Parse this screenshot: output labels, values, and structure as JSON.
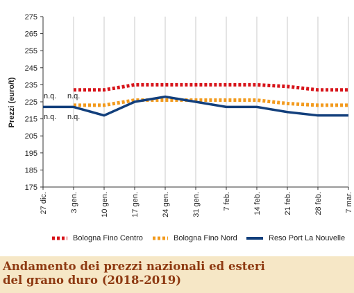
{
  "chart_data": {
    "type": "line",
    "ylabel": "Prezzi (euro/t)",
    "ylim": [
      175,
      275
    ],
    "yticks": [
      175,
      185,
      195,
      205,
      215,
      225,
      235,
      245,
      255,
      265,
      275
    ],
    "categories": [
      "27 dic.",
      "3 gen.",
      "10 gen.",
      "17 gen.",
      "24 gen.",
      "31 gen.",
      "7 feb.",
      "14 feb.",
      "21 feb.",
      "28 feb.",
      "7 mar."
    ],
    "series": [
      {
        "name": "Bologna Fino Centro",
        "color": "#d7141a",
        "style": "dotted",
        "values": [
          null,
          232,
          232,
          235,
          235,
          235,
          235,
          235,
          234,
          232,
          232
        ]
      },
      {
        "name": "Bologna Fino Nord",
        "color": "#f29a1d",
        "style": "dotted",
        "values": [
          null,
          223,
          223,
          226,
          226,
          226,
          226,
          226,
          224,
          223,
          223
        ]
      },
      {
        "name": "Reso Port La Nouvelle",
        "color": "#123f7c",
        "style": "solid",
        "values": [
          222,
          222,
          217,
          225,
          228,
          225,
          222,
          222,
          219,
          217,
          217
        ]
      }
    ],
    "annotations": [
      "n.q.",
      "n.q.",
      "n.q.",
      "n.q."
    ],
    "grid": "x",
    "legend_position": "bottom"
  },
  "caption": {
    "line1": "Andamento dei prezzi nazionali ed esteri",
    "line2": "del grano duro (2018-2019)"
  }
}
